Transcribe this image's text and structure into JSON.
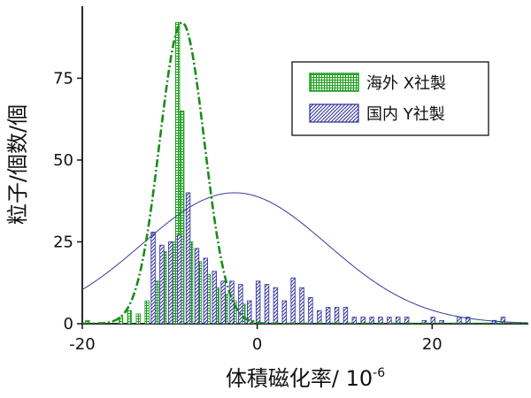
{
  "chart_data": {
    "type": "bar",
    "xlabel": "体積磁化率/ 10",
    "xlabel_exponent": "-6",
    "ylabel": "粒子/個数/個",
    "xlim": [
      -20,
      31
    ],
    "ylim": [
      0,
      97
    ],
    "x_ticks": [
      -20,
      0,
      20
    ],
    "x_tick_labels": [
      "-20",
      "0",
      "20"
    ],
    "y_ticks": [
      0,
      25,
      50,
      75
    ],
    "y_tick_labels": [
      "0",
      "25",
      "50",
      "75"
    ],
    "legend_position": "top-right",
    "series": [
      {
        "name": "海外 X社製",
        "color": "#1a9e1a",
        "pattern": "grid",
        "bars": [
          {
            "x": -19.4,
            "y": 1
          },
          {
            "x": -15.6,
            "y": 2
          },
          {
            "x": -14.6,
            "y": 4
          },
          {
            "x": -13.6,
            "y": 3
          },
          {
            "x": -12.6,
            "y": 7
          },
          {
            "x": -11.5,
            "y": 13
          },
          {
            "x": -10.6,
            "y": 22
          },
          {
            "x": -9.6,
            "y": 25
          },
          {
            "x": -9.1,
            "y": 92
          },
          {
            "x": -8.6,
            "y": 65
          },
          {
            "x": -7.6,
            "y": 25
          },
          {
            "x": -6.6,
            "y": 19
          },
          {
            "x": -5.6,
            "y": 15
          },
          {
            "x": -4.6,
            "y": 11
          },
          {
            "x": -3.6,
            "y": 9
          },
          {
            "x": -2.6,
            "y": 7
          },
          {
            "x": -1.6,
            "y": 6
          },
          {
            "x": -0.6,
            "y": 1
          }
        ],
        "fit": {
          "type": "gaussian",
          "amplitude": 92,
          "mean": -8.6,
          "sigma": 2.55
        }
      },
      {
        "name": "国内 Y社製",
        "color": "#2b2b9c",
        "pattern": "diagonal",
        "bars": [
          {
            "x": -11.9,
            "y": 28
          },
          {
            "x": -10.9,
            "y": 24
          },
          {
            "x": -9.9,
            "y": 25
          },
          {
            "x": -8.9,
            "y": 27
          },
          {
            "x": -7.9,
            "y": 40
          },
          {
            "x": -6.9,
            "y": 23
          },
          {
            "x": -5.9,
            "y": 20
          },
          {
            "x": -4.9,
            "y": 16
          },
          {
            "x": -3.9,
            "y": 13
          },
          {
            "x": -2.9,
            "y": 13
          },
          {
            "x": -1.9,
            "y": 12
          },
          {
            "x": -0.9,
            "y": 7
          },
          {
            "x": 0.1,
            "y": 13
          },
          {
            "x": 1.1,
            "y": 12
          },
          {
            "x": 2.1,
            "y": 11
          },
          {
            "x": 3.1,
            "y": 7
          },
          {
            "x": 4.1,
            "y": 14
          },
          {
            "x": 5.1,
            "y": 11
          },
          {
            "x": 6.1,
            "y": 8
          },
          {
            "x": 7.1,
            "y": 4
          },
          {
            "x": 8.1,
            "y": 5
          },
          {
            "x": 9.1,
            "y": 5
          },
          {
            "x": 10.1,
            "y": 5
          },
          {
            "x": 11.1,
            "y": 2
          },
          {
            "x": 12.1,
            "y": 2
          },
          {
            "x": 13.1,
            "y": 2
          },
          {
            "x": 14.1,
            "y": 2
          },
          {
            "x": 15.1,
            "y": 2
          },
          {
            "x": 16.1,
            "y": 2
          },
          {
            "x": 17.1,
            "y": 2
          },
          {
            "x": 19.1,
            "y": 1
          },
          {
            "x": 20.1,
            "y": 2
          },
          {
            "x": 21.1,
            "y": 1
          },
          {
            "x": 23.1,
            "y": 2
          },
          {
            "x": 24.1,
            "y": 2
          },
          {
            "x": 27.1,
            "y": 1
          },
          {
            "x": 28.1,
            "y": 2
          }
        ],
        "fit": {
          "type": "gaussian",
          "amplitude": 40,
          "mean": -2.6,
          "sigma": 10.6
        }
      }
    ]
  }
}
